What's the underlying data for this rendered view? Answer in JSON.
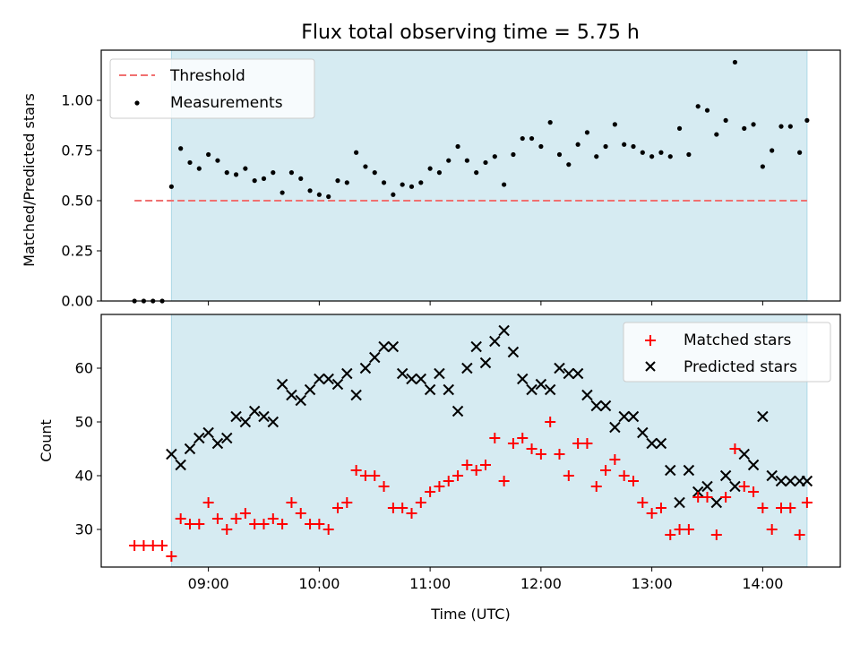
{
  "chart_data": [
    {
      "type": "scatter",
      "title": "Flux total observing time = 5.75 h",
      "xlabel": "",
      "ylabel": "Matched/Predicted stars",
      "ylim": [
        0,
        1.25
      ],
      "yticks": [
        "0.00",
        "0.25",
        "0.50",
        "0.75",
        "1.00"
      ],
      "grid": false,
      "legend_position": "top-left",
      "shaded_interval": [
        "08:40",
        "14:24"
      ],
      "threshold": {
        "name": "Threshold",
        "y": 0.5,
        "x_range": [
          "08:20",
          "14:24"
        ],
        "color": "#f07070",
        "style": "dashed"
      },
      "series": [
        {
          "name": "Measurements",
          "color": "#000000",
          "x": [
            "08:20",
            "08:25",
            "08:30",
            "08:35",
            "08:40",
            "08:45",
            "08:50",
            "08:55",
            "09:00",
            "09:05",
            "09:10",
            "09:15",
            "09:20",
            "09:25",
            "09:30",
            "09:35",
            "09:40",
            "09:45",
            "09:50",
            "09:55",
            "10:00",
            "10:05",
            "10:10",
            "10:15",
            "10:20",
            "10:25",
            "10:30",
            "10:35",
            "10:40",
            "10:45",
            "10:50",
            "10:55",
            "11:00",
            "11:05",
            "11:10",
            "11:15",
            "11:20",
            "11:25",
            "11:30",
            "11:35",
            "11:40",
            "11:45",
            "11:50",
            "11:55",
            "12:00",
            "12:05",
            "12:10",
            "12:15",
            "12:20",
            "12:25",
            "12:30",
            "12:35",
            "12:40",
            "12:45",
            "12:50",
            "12:55",
            "13:00",
            "13:05",
            "13:10",
            "13:15",
            "13:20",
            "13:25",
            "13:30",
            "13:35",
            "13:40",
            "13:45",
            "13:50",
            "13:55",
            "14:00",
            "14:05",
            "14:10",
            "14:15",
            "14:20",
            "14:24"
          ],
          "y": [
            0.0,
            0.0,
            0.0,
            0.0,
            0.57,
            0.76,
            0.69,
            0.66,
            0.73,
            0.7,
            0.64,
            0.63,
            0.66,
            0.6,
            0.61,
            0.64,
            0.54,
            0.64,
            0.61,
            0.55,
            0.53,
            0.52,
            0.6,
            0.59,
            0.74,
            0.67,
            0.64,
            0.59,
            0.53,
            0.58,
            0.57,
            0.59,
            0.66,
            0.64,
            0.7,
            0.77,
            0.7,
            0.64,
            0.69,
            0.72,
            0.58,
            0.73,
            0.81,
            0.81,
            0.77,
            0.89,
            0.73,
            0.68,
            0.78,
            0.84,
            0.72,
            0.77,
            0.88,
            0.78,
            0.77,
            0.74,
            0.72,
            0.74,
            0.72,
            0.86,
            0.73,
            0.97,
            0.95,
            0.83,
            0.9,
            1.19,
            0.86,
            0.88,
            0.67,
            0.75,
            0.87,
            0.87,
            0.74,
            0.9
          ]
        }
      ]
    },
    {
      "type": "scatter",
      "title": "",
      "xlabel": "Time (UTC)",
      "ylabel": "Count",
      "ylim": [
        23,
        70
      ],
      "yticks": [
        "30",
        "40",
        "50",
        "60"
      ],
      "xticks": [
        "09:00",
        "10:00",
        "11:00",
        "12:00",
        "13:00",
        "14:00"
      ],
      "grid": false,
      "legend_position": "top-right",
      "shaded_interval": [
        "08:40",
        "14:24"
      ],
      "series": [
        {
          "name": "Matched stars",
          "color": "#ff0000",
          "marker": "plus",
          "x": [
            "08:20",
            "08:25",
            "08:30",
            "08:35",
            "08:40",
            "08:45",
            "08:50",
            "08:55",
            "09:00",
            "09:05",
            "09:10",
            "09:15",
            "09:20",
            "09:25",
            "09:30",
            "09:35",
            "09:40",
            "09:45",
            "09:50",
            "09:55",
            "10:00",
            "10:05",
            "10:10",
            "10:15",
            "10:20",
            "10:25",
            "10:30",
            "10:35",
            "10:40",
            "10:45",
            "10:50",
            "10:55",
            "11:00",
            "11:05",
            "11:10",
            "11:15",
            "11:20",
            "11:25",
            "11:30",
            "11:35",
            "11:40",
            "11:45",
            "11:50",
            "11:55",
            "12:00",
            "12:05",
            "12:10",
            "12:15",
            "12:20",
            "12:25",
            "12:30",
            "12:35",
            "12:40",
            "12:45",
            "12:50",
            "12:55",
            "13:00",
            "13:05",
            "13:10",
            "13:15",
            "13:20",
            "13:25",
            "13:30",
            "13:35",
            "13:40",
            "13:45",
            "13:50",
            "13:55",
            "14:00",
            "14:05",
            "14:10",
            "14:15",
            "14:20",
            "14:24"
          ],
          "y": [
            27,
            27,
            27,
            27,
            25,
            32,
            31,
            31,
            35,
            32,
            30,
            32,
            33,
            31,
            31,
            32,
            31,
            35,
            33,
            31,
            31,
            30,
            34,
            35,
            41,
            40,
            40,
            38,
            34,
            34,
            33,
            35,
            37,
            38,
            39,
            40,
            42,
            41,
            42,
            47,
            39,
            46,
            47,
            45,
            44,
            50,
            44,
            40,
            46,
            46,
            38,
            41,
            43,
            40,
            39,
            35,
            33,
            34,
            29,
            30,
            30,
            36,
            36,
            29,
            36,
            45,
            38,
            37,
            34,
            30,
            34,
            34,
            29,
            35
          ]
        },
        {
          "name": "Predicted stars",
          "color": "#000000",
          "marker": "x",
          "x": [
            "08:40",
            "08:45",
            "08:50",
            "08:55",
            "09:00",
            "09:05",
            "09:10",
            "09:15",
            "09:20",
            "09:25",
            "09:30",
            "09:35",
            "09:40",
            "09:45",
            "09:50",
            "09:55",
            "10:00",
            "10:05",
            "10:10",
            "10:15",
            "10:20",
            "10:25",
            "10:30",
            "10:35",
            "10:40",
            "10:45",
            "10:50",
            "10:55",
            "11:00",
            "11:05",
            "11:10",
            "11:15",
            "11:20",
            "11:25",
            "11:30",
            "11:35",
            "11:40",
            "11:45",
            "11:50",
            "11:55",
            "12:00",
            "12:05",
            "12:10",
            "12:15",
            "12:20",
            "12:25",
            "12:30",
            "12:35",
            "12:40",
            "12:45",
            "12:50",
            "12:55",
            "13:00",
            "13:05",
            "13:10",
            "13:15",
            "13:20",
            "13:25",
            "13:30",
            "13:35",
            "13:40",
            "13:45",
            "13:50",
            "13:55",
            "14:00",
            "14:05",
            "14:10",
            "14:15",
            "14:20",
            "14:24"
          ],
          "y": [
            44,
            42,
            45,
            47,
            48,
            46,
            47,
            51,
            50,
            52,
            51,
            50,
            57,
            55,
            54,
            56,
            58,
            58,
            57,
            59,
            55,
            60,
            62,
            64,
            64,
            59,
            58,
            58,
            56,
            59,
            56,
            52,
            60,
            64,
            61,
            65,
            67,
            63,
            58,
            56,
            57,
            56,
            60,
            59,
            59,
            55,
            53,
            53,
            49,
            51,
            51,
            48,
            46,
            46,
            41,
            35,
            41,
            37,
            38,
            35,
            40,
            38,
            44,
            42,
            51,
            40,
            39,
            39,
            39,
            39
          ]
        }
      ]
    }
  ]
}
